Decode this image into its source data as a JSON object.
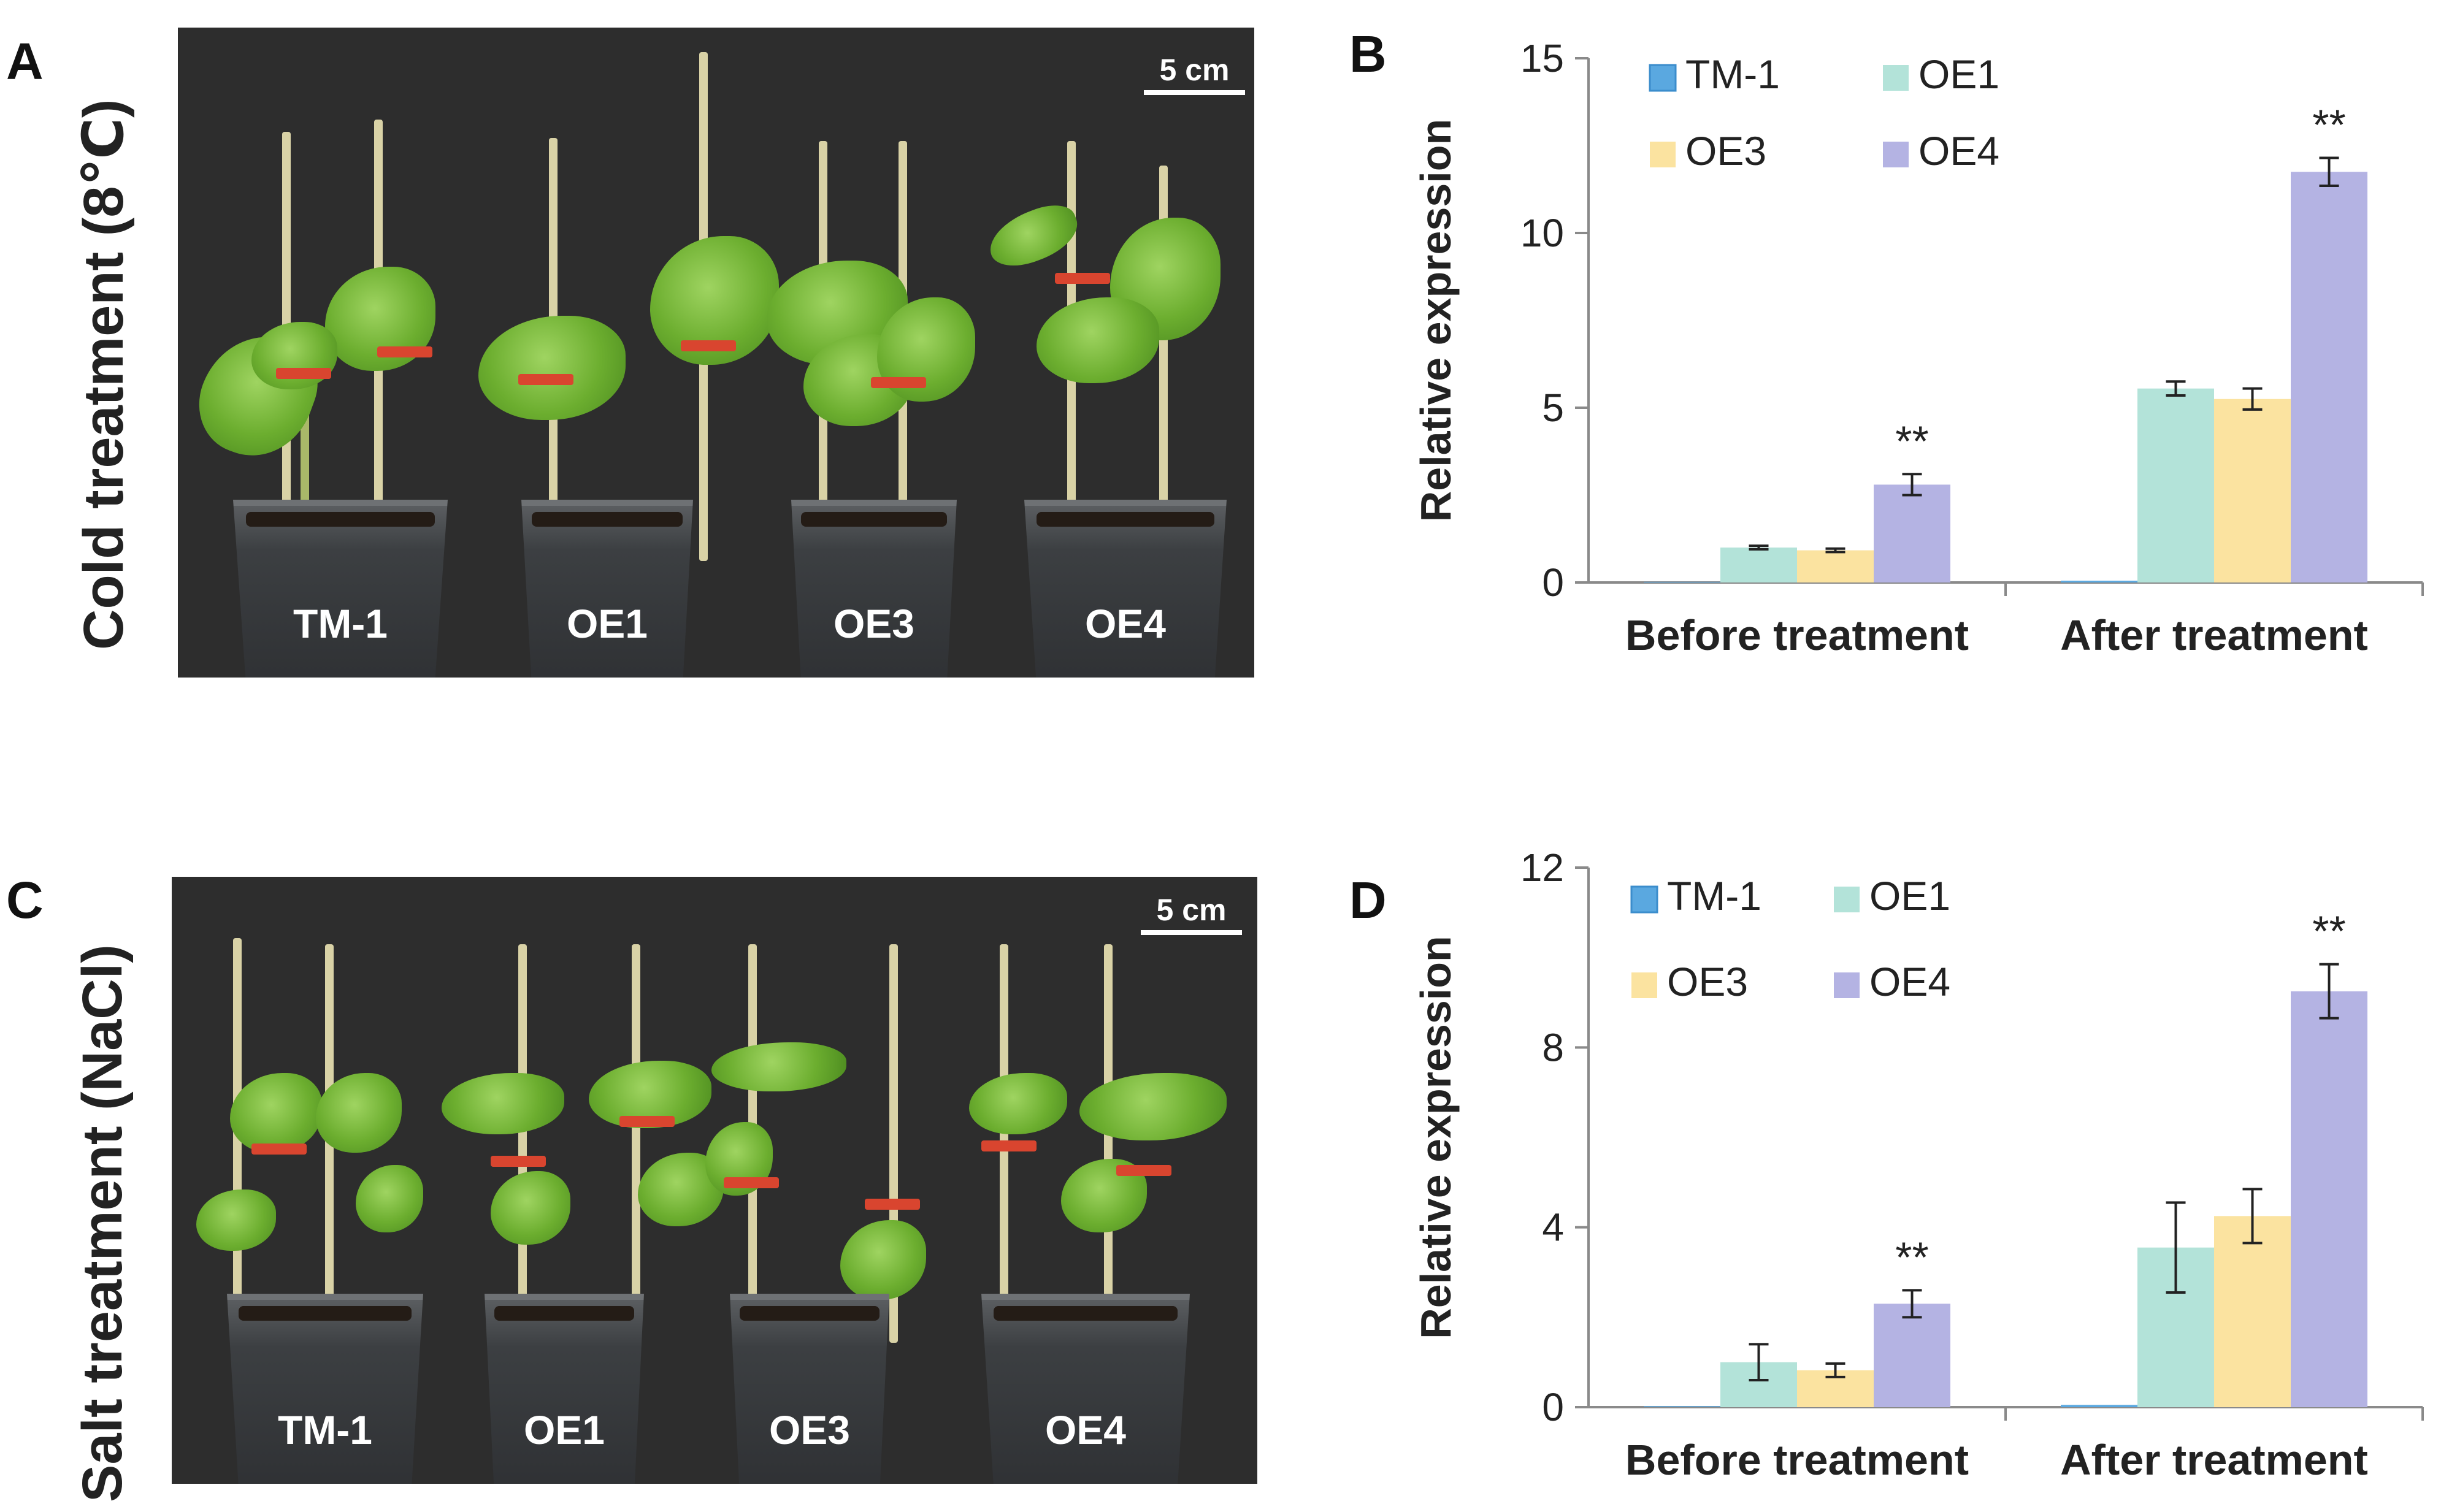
{
  "panels": {
    "A": {
      "letter": "A",
      "title": "Cold treatment (8℃)",
      "scale": "5 cm",
      "pots": [
        "TM-1",
        "OE1",
        "OE3",
        "OE4"
      ]
    },
    "B": {
      "letter": "B"
    },
    "C": {
      "letter": "C",
      "title": "Salt treatment (NaCl)",
      "scale": "5 cm",
      "pots": [
        "TM-1",
        "OE1",
        "OE3",
        "OE4"
      ]
    },
    "D": {
      "letter": "D"
    }
  },
  "colors": {
    "TM-1": "#5aa8e0",
    "OE1": "#b3e3d9",
    "OE3": "#fbe3a0",
    "OE4": "#b4b3e3"
  },
  "chart_data": [
    {
      "panel": "B",
      "type": "bar",
      "ylabel": "Relative expression",
      "xlabel": "",
      "ylim": [
        0,
        15
      ],
      "yticks": [
        0,
        5,
        10,
        15
      ],
      "categories": [
        "Before treatment",
        "After treatment"
      ],
      "series": [
        {
          "name": "TM-1",
          "values": [
            0.02,
            0.05
          ],
          "errors": [
            0,
            0
          ]
        },
        {
          "name": "OE1",
          "values": [
            1.0,
            5.55
          ],
          "errors": [
            0.05,
            0.2
          ]
        },
        {
          "name": "OE3",
          "values": [
            0.92,
            5.25
          ],
          "errors": [
            0.05,
            0.3
          ]
        },
        {
          "name": "OE4",
          "values": [
            2.8,
            11.75
          ],
          "errors": [
            0.3,
            0.4
          ]
        }
      ],
      "annotations": [
        {
          "text": "**",
          "category": "Before treatment",
          "series": "OE4"
        },
        {
          "text": "**",
          "category": "After treatment",
          "series": "OE4"
        }
      ],
      "legend": "top"
    },
    {
      "panel": "D",
      "type": "bar",
      "ylabel": "Relative expression",
      "xlabel": "",
      "ylim": [
        0,
        12
      ],
      "yticks": [
        0,
        4,
        8,
        12
      ],
      "categories": [
        "Before treatment",
        "After treatment"
      ],
      "series": [
        {
          "name": "TM-1",
          "values": [
            0.02,
            0.05
          ],
          "errors": [
            0,
            0
          ]
        },
        {
          "name": "OE1",
          "values": [
            1.0,
            3.55
          ],
          "errors": [
            0.4,
            1.0
          ]
        },
        {
          "name": "OE3",
          "values": [
            0.82,
            4.25
          ],
          "errors": [
            0.15,
            0.6
          ]
        },
        {
          "name": "OE4",
          "values": [
            2.3,
            9.25
          ],
          "errors": [
            0.3,
            0.6
          ]
        }
      ],
      "annotations": [
        {
          "text": "**",
          "category": "Before treatment",
          "series": "OE4"
        },
        {
          "text": "**",
          "category": "After treatment",
          "series": "OE4"
        }
      ],
      "legend": "top"
    }
  ]
}
